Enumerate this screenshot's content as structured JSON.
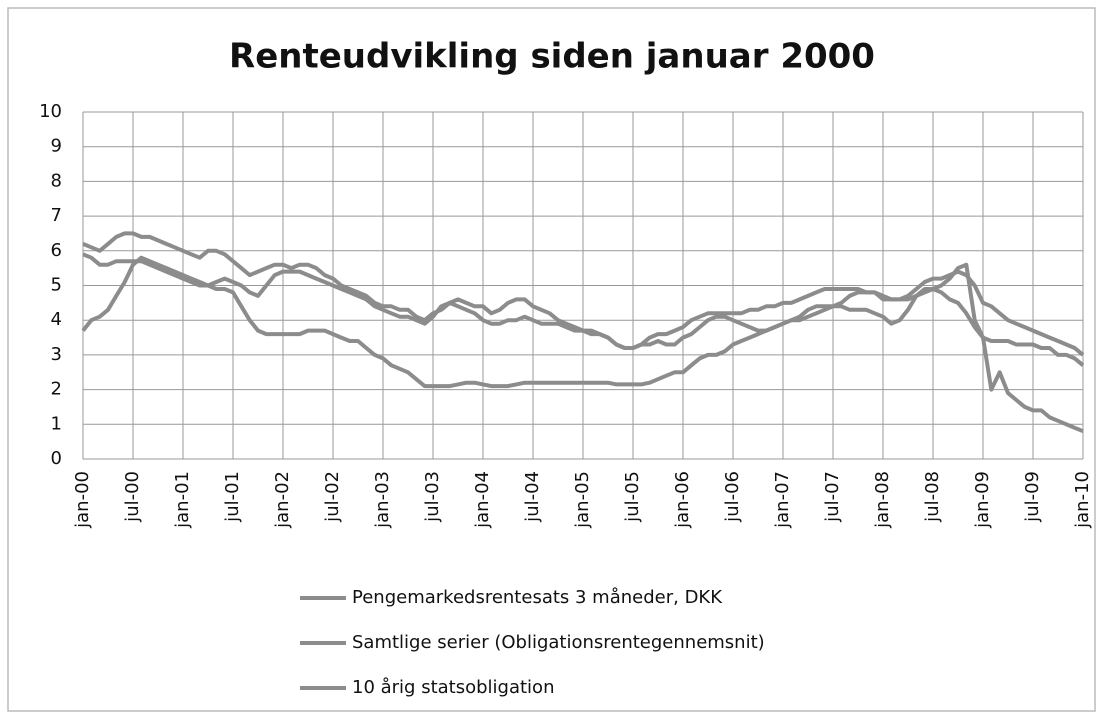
{
  "chart_data": {
    "type": "line",
    "title": "Renteudvikling siden januar 2000",
    "categories": [
      "jan-00",
      null,
      null,
      null,
      null,
      null,
      "jul-00",
      null,
      null,
      null,
      null,
      null,
      "jan-01",
      null,
      null,
      null,
      null,
      null,
      "jul-01",
      null,
      null,
      null,
      null,
      null,
      "jan-02",
      null,
      null,
      null,
      null,
      null,
      "jul-02",
      null,
      null,
      null,
      null,
      null,
      "jan-03",
      null,
      null,
      null,
      null,
      null,
      "jul-03",
      null,
      null,
      null,
      null,
      null,
      "jan-04",
      null,
      null,
      null,
      null,
      null,
      "jul-04",
      null,
      null,
      null,
      null,
      null,
      "jan-05",
      null,
      null,
      null,
      null,
      null,
      "jul-05",
      null,
      null,
      null,
      null,
      null,
      "jan-06",
      null,
      null,
      null,
      null,
      null,
      "jul-06",
      null,
      null,
      null,
      null,
      null,
      "jan-07",
      null,
      null,
      null,
      null,
      null,
      "jul-07",
      null,
      null,
      null,
      null,
      null,
      "jan-08",
      null,
      null,
      null,
      null,
      null,
      "jul-08",
      null,
      null,
      null,
      null,
      null,
      "jan-09",
      null,
      null,
      null,
      null,
      null,
      "jul-09",
      null,
      null,
      null,
      null,
      null,
      "jan-10"
    ],
    "series": [
      {
        "name": "Pengemarkedsrentesats 3 måneder, DKK",
        "color": "#8c8c8c",
        "values": [
          3.7,
          4.0,
          4.1,
          4.3,
          4.7,
          5.1,
          5.6,
          5.8,
          5.7,
          5.6,
          5.5,
          5.4,
          5.3,
          5.2,
          5.1,
          5.0,
          4.9,
          4.9,
          4.8,
          4.4,
          4.0,
          3.7,
          3.6,
          3.6,
          3.6,
          3.6,
          3.6,
          3.7,
          3.7,
          3.7,
          3.6,
          3.5,
          3.4,
          3.4,
          3.2,
          3.0,
          2.9,
          2.7,
          2.6,
          2.5,
          2.3,
          2.1,
          2.1,
          2.1,
          2.1,
          2.15,
          2.2,
          2.2,
          2.15,
          2.1,
          2.1,
          2.1,
          2.15,
          2.2,
          2.2,
          2.2,
          2.2,
          2.2,
          2.2,
          2.2,
          2.2,
          2.2,
          2.2,
          2.2,
          2.15,
          2.15,
          2.15,
          2.15,
          2.2,
          2.3,
          2.4,
          2.5,
          2.5,
          2.7,
          2.9,
          3.0,
          3.0,
          3.1,
          3.3,
          3.4,
          3.5,
          3.6,
          3.7,
          3.8,
          3.9,
          4.0,
          4.0,
          4.1,
          4.2,
          4.3,
          4.4,
          4.5,
          4.7,
          4.8,
          4.8,
          4.8,
          4.6,
          4.6,
          4.6,
          4.6,
          4.7,
          4.8,
          4.9,
          5.0,
          5.2,
          5.5,
          5.6,
          4.0,
          3.5,
          2.0,
          2.5,
          1.9,
          1.7,
          1.5,
          1.4,
          1.4,
          1.2,
          1.1,
          1.0,
          0.9,
          0.8
        ]
      },
      {
        "name": "Samtlige serier (Obligationsrentegennemsnit)",
        "color": "#8c8c8c",
        "values": [
          5.9,
          5.8,
          5.6,
          5.6,
          5.7,
          5.7,
          5.7,
          5.7,
          5.6,
          5.5,
          5.4,
          5.3,
          5.2,
          5.1,
          5.0,
          5.0,
          5.1,
          5.2,
          5.1,
          5.0,
          4.8,
          4.7,
          5.0,
          5.3,
          5.4,
          5.4,
          5.4,
          5.3,
          5.2,
          5.1,
          5.0,
          4.9,
          4.8,
          4.7,
          4.6,
          4.4,
          4.3,
          4.2,
          4.1,
          4.1,
          4.0,
          3.9,
          4.1,
          4.4,
          4.5,
          4.4,
          4.3,
          4.2,
          4.0,
          3.9,
          3.9,
          4.0,
          4.0,
          4.1,
          4.0,
          3.9,
          3.9,
          3.9,
          3.8,
          3.7,
          3.7,
          3.6,
          3.6,
          3.5,
          3.3,
          3.2,
          3.2,
          3.3,
          3.5,
          3.6,
          3.6,
          3.7,
          3.8,
          4.0,
          4.1,
          4.2,
          4.2,
          4.2,
          4.2,
          4.2,
          4.3,
          4.3,
          4.4,
          4.4,
          4.5,
          4.5,
          4.6,
          4.7,
          4.8,
          4.9,
          4.9,
          4.9,
          4.9,
          4.9,
          4.8,
          4.8,
          4.7,
          4.6,
          4.6,
          4.7,
          4.9,
          5.1,
          5.2,
          5.2,
          5.3,
          5.4,
          5.3,
          5.0,
          4.5,
          4.4,
          4.2,
          4.0,
          3.9,
          3.8,
          3.7,
          3.6,
          3.5,
          3.4,
          3.3,
          3.2,
          3.0
        ]
      },
      {
        "name": "10 årig statsobligation",
        "color": "#8c8c8c",
        "values": [
          6.2,
          6.1,
          6.0,
          6.2,
          6.4,
          6.5,
          6.5,
          6.4,
          6.4,
          6.3,
          6.2,
          6.1,
          6.0,
          5.9,
          5.8,
          6.0,
          6.0,
          5.9,
          5.7,
          5.5,
          5.3,
          5.4,
          5.5,
          5.6,
          5.6,
          5.5,
          5.6,
          5.6,
          5.5,
          5.3,
          5.2,
          5.0,
          4.9,
          4.8,
          4.7,
          4.5,
          4.4,
          4.4,
          4.3,
          4.3,
          4.1,
          4.0,
          4.2,
          4.3,
          4.5,
          4.6,
          4.5,
          4.4,
          4.4,
          4.2,
          4.3,
          4.5,
          4.6,
          4.6,
          4.4,
          4.3,
          4.2,
          4.0,
          3.9,
          3.8,
          3.7,
          3.7,
          3.6,
          3.5,
          3.3,
          3.2,
          3.2,
          3.3,
          3.3,
          3.4,
          3.3,
          3.3,
          3.5,
          3.6,
          3.8,
          4.0,
          4.1,
          4.1,
          4.0,
          3.9,
          3.8,
          3.7,
          3.7,
          3.8,
          3.9,
          4.0,
          4.1,
          4.3,
          4.4,
          4.4,
          4.4,
          4.4,
          4.3,
          4.3,
          4.3,
          4.2,
          4.1,
          3.9,
          4.0,
          4.3,
          4.7,
          4.9,
          4.9,
          4.8,
          4.6,
          4.5,
          4.2,
          3.8,
          3.5,
          3.4,
          3.4,
          3.4,
          3.3,
          3.3,
          3.3,
          3.2,
          3.2,
          3.0,
          3.0,
          2.9,
          2.7
        ]
      }
    ],
    "ylim": [
      0,
      10
    ],
    "yticks": [
      0,
      1,
      2,
      3,
      4,
      5,
      6,
      7,
      8,
      9,
      10
    ],
    "grid": true
  }
}
